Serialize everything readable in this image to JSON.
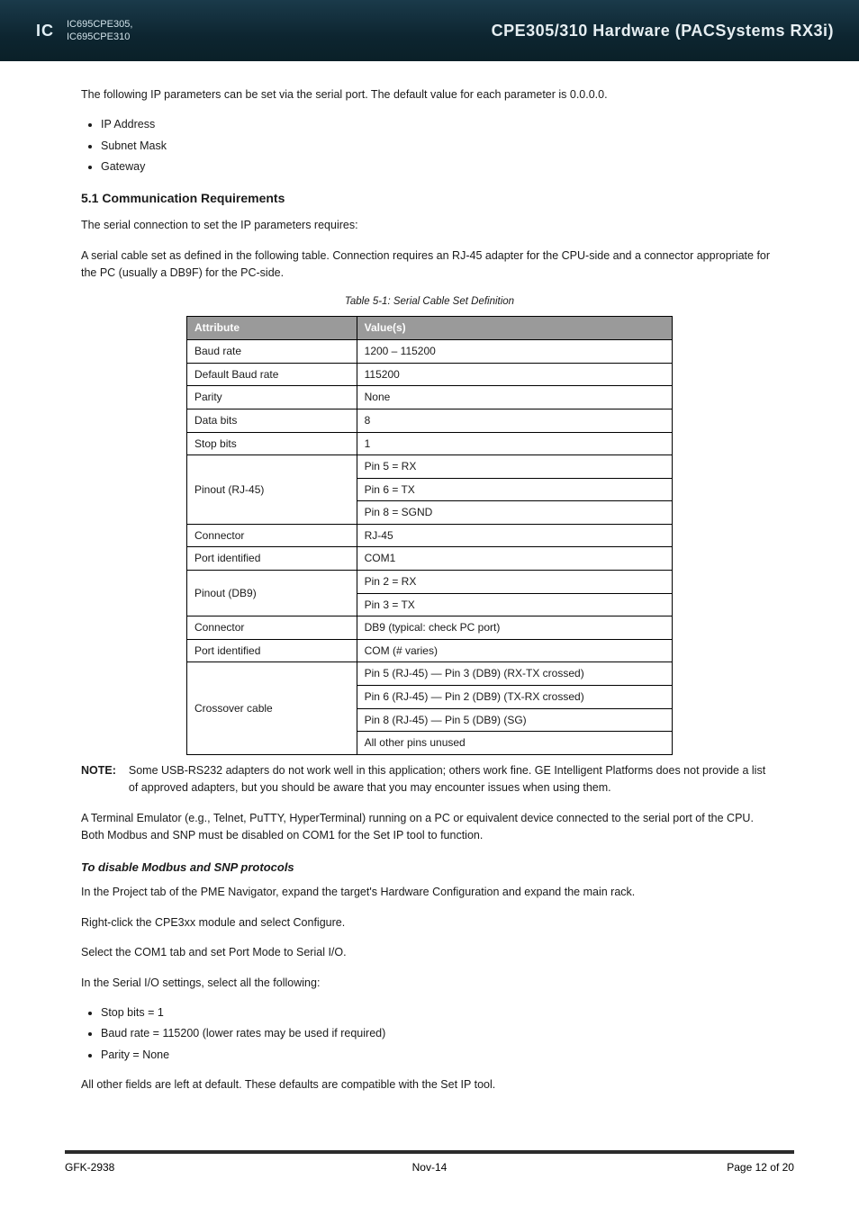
{
  "header": {
    "logo": "IC",
    "product_line1": "IC695CPE305,",
    "product_line2": "IC695CPE310",
    "title": "CPE305/310 Hardware (PACSystems RX3i)"
  },
  "intro": "The following IP parameters can be set via the serial port. The default value for each parameter is 0.0.0.0.",
  "bullets": [
    "IP Address",
    "Subnet Mask",
    "Gateway"
  ],
  "section": {
    "heading": "5.1 Communication Requirements",
    "p1": "The serial connection to set the IP parameters requires:",
    "p2": "A serial cable set as defined in the following table. Connection requires an RJ-45 adapter for the CPU-side and a connector appropriate for the PC (usually a DB9F) for the PC-side.",
    "table_caption": "Table 5-1: Serial Cable Set Definition",
    "table": {
      "columns": [
        "Attribute",
        "Value(s)"
      ],
      "rows": [
        {
          "attr": "Baud rate",
          "vals": [
            "1200 – 115200"
          ]
        },
        {
          "attr": "Default Baud rate",
          "vals": [
            "115200"
          ]
        },
        {
          "attr": "Parity",
          "vals": [
            "None"
          ]
        },
        {
          "attr": "Data bits",
          "vals": [
            "8"
          ]
        },
        {
          "attr": "Stop bits",
          "vals": [
            "1"
          ]
        },
        {
          "attr": "Pinout (RJ-45)",
          "vals": [
            "Pin 5 = RX",
            "Pin 6 = TX",
            "Pin 8 = SGND"
          ]
        },
        {
          "attr": "Connector",
          "vals": [
            "RJ-45"
          ]
        },
        {
          "attr": "Port identified",
          "vals": [
            "COM1"
          ]
        },
        {
          "attr": "Pinout (DB9)",
          "vals": [
            "Pin 2 = RX",
            "Pin 3 = TX"
          ]
        },
        {
          "attr": "Connector",
          "vals": [
            "DB9 (typical: check PC port)"
          ]
        },
        {
          "attr": "Port identified",
          "vals": [
            "COM (# varies)"
          ]
        },
        {
          "attr": "Crossover cable",
          "vals": [
            "Pin 5 (RJ-45) — Pin 3 (DB9) (RX-TX crossed)",
            "Pin 6 (RJ-45) — Pin 2 (DB9) (TX-RX crossed)",
            "Pin 8 (RJ-45) — Pin 5 (DB9) (SG)",
            "All other pins unused"
          ]
        }
      ]
    },
    "note_label": "NOTE:",
    "note_body": "Some USB-RS232 adapters do not work well in this application; others work fine. GE Intelligent Platforms does not provide a list of approved adapters, but you should be aware that you may encounter issues when using them.",
    "p3": "A Terminal Emulator (e.g., Telnet, PuTTY, HyperTerminal) running on a PC or equivalent device connected to the serial port of the CPU. Both Modbus and SNP must be disabled on COM1 for the Set IP tool to function.",
    "subtitle": "To disable Modbus and SNP protocols",
    "steps": [
      "In the Project tab of the PME Navigator, expand the target's Hardware Configuration and expand the main rack.",
      "Right-click the CPE3xx module and select Configure.",
      "Select the COM1 tab and set Port Mode to Serial I/O.",
      "In the Serial I/O settings, select all the following:"
    ],
    "sub_bullets": [
      "Stop bits = 1",
      "Baud rate = 115200 (lower rates may be used if required)",
      "Parity = None"
    ],
    "after_bullets": "All other fields are left at default. These defaults are compatible with the Set IP tool."
  },
  "footer": {
    "left": "GFK-2938",
    "center": "Nov-14",
    "right": "Page 12 of 20"
  }
}
